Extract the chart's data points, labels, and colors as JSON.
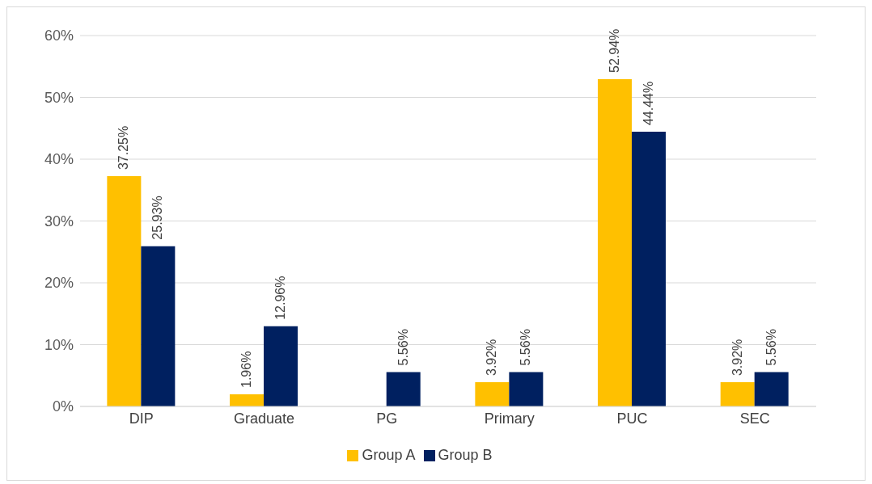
{
  "chart_data": {
    "type": "bar",
    "categories": [
      "DIP",
      "Graduate",
      "PG",
      "Primary",
      "PUC",
      "SEC"
    ],
    "series": [
      {
        "name": "Group A",
        "color": "#ffc000",
        "values": [
          37.25,
          1.96,
          null,
          3.92,
          52.94,
          3.92
        ],
        "value_labels": [
          "37.25%",
          "1.96%",
          null,
          "3.92%",
          "52.94%",
          "3.92%"
        ]
      },
      {
        "name": "Group B",
        "color": "#002060",
        "values": [
          25.93,
          12.96,
          5.56,
          5.56,
          44.44,
          5.56
        ],
        "value_labels": [
          "25.93%",
          "12.96%",
          "5.56%",
          "5.56%",
          "44.44%",
          "5.56%"
        ]
      }
    ],
    "ylim": [
      0,
      60
    ],
    "yticks": [
      {
        "value": 0,
        "label": "0%"
      },
      {
        "value": 10,
        "label": "10%"
      },
      {
        "value": 20,
        "label": "20%"
      },
      {
        "value": 30,
        "label": "30%"
      },
      {
        "value": 40,
        "label": "40%"
      },
      {
        "value": 50,
        "label": "50%"
      },
      {
        "value": 60,
        "label": "60%"
      }
    ],
    "grid": "y",
    "legend": "bottom"
  }
}
